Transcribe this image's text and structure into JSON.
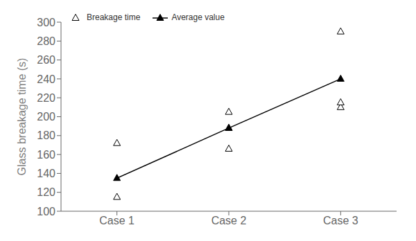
{
  "chart_data": {
    "type": "line",
    "categories": [
      "Case 1",
      "Case 2",
      "Case 3"
    ],
    "series": [
      {
        "name": "Breakage time",
        "type": "scatter",
        "marker": "triangle-open",
        "line_style": "none",
        "color": "#000000",
        "x": [
          "Case 1",
          "Case 1",
          "Case 2",
          "Case 2",
          "Case 2",
          "Case 3",
          "Case 3",
          "Case 3"
        ],
        "values": [
          115,
          172,
          166,
          188,
          205,
          210,
          215,
          290
        ]
      },
      {
        "name": "Average value",
        "type": "line",
        "marker": "triangle",
        "line_style": "solid",
        "color": "#000000",
        "values": [
          135,
          188,
          240
        ]
      }
    ],
    "ylabel": "Glass breakage time (s)",
    "ylim": [
      100,
      300
    ],
    "yticks": [
      100,
      120,
      140,
      160,
      180,
      200,
      220,
      240,
      260,
      280,
      300
    ],
    "grid": false,
    "legend": "upper left"
  }
}
